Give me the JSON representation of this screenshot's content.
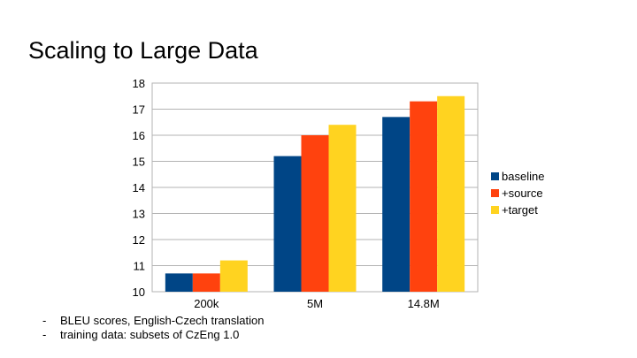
{
  "slide": {
    "title": "Scaling to Large Data",
    "notes": [
      "BLEU scores, English-Czech translation",
      "training data: subsets of CzEng 1.0"
    ],
    "bullet": "-"
  },
  "chart_data": {
    "type": "bar",
    "title": "",
    "xlabel": "",
    "ylabel": "",
    "categories": [
      "200k",
      "5M",
      "14.8M"
    ],
    "series": [
      {
        "name": "baseline",
        "color": "#004586",
        "values": [
          10.7,
          15.2,
          16.7
        ]
      },
      {
        "name": "+source",
        "color": "#ff420e",
        "values": [
          10.7,
          16.0,
          17.3
        ]
      },
      {
        "name": "+target",
        "color": "#ffd320",
        "values": [
          11.2,
          16.4,
          17.5
        ]
      }
    ],
    "ylim": [
      10,
      18
    ],
    "yticks": [
      10,
      11,
      12,
      13,
      14,
      15,
      16,
      17,
      18
    ],
    "grid": true,
    "legend": "right"
  }
}
